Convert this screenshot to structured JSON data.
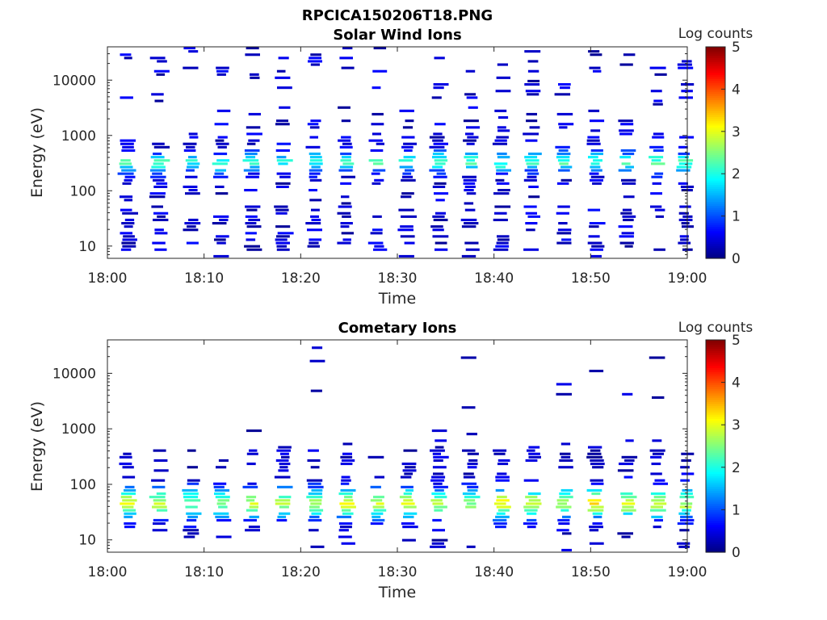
{
  "figure": {
    "title": "RPCICA150206T18.PNG"
  },
  "chart_data": [
    {
      "type": "heatmap",
      "title": "Solar Wind Ions",
      "xlabel": "Time",
      "ylabel": "Energy (eV)",
      "x_ticks": [
        "18:00",
        "18:10",
        "18:20",
        "18:30",
        "18:40",
        "18:50",
        "19:00"
      ],
      "x_range": [
        "18:00",
        "19:00"
      ],
      "y_scale": "log",
      "y_ticks": [
        "10",
        "100",
        "1000",
        "10000"
      ],
      "y_range": [
        6,
        40000
      ],
      "colorbar": {
        "label": "Log counts",
        "ticks": [
          "0",
          "1",
          "2",
          "3",
          "4",
          "5"
        ],
        "range": [
          0,
          5
        ],
        "colormap": "jet"
      },
      "peaks": [
        {
          "time_min": 2.1,
          "core_energy_eV": 320,
          "peak_log_counts": 1.8
        },
        {
          "time_min": 5.4,
          "core_energy_eV": 320,
          "peak_log_counts": 1.7
        },
        {
          "time_min": 8.7,
          "core_energy_eV": 320,
          "peak_log_counts": 1.6
        },
        {
          "time_min": 11.8,
          "core_energy_eV": 300,
          "peak_log_counts": 1.6
        },
        {
          "time_min": 15.0,
          "core_energy_eV": 330,
          "peak_log_counts": 1.8
        },
        {
          "time_min": 18.2,
          "core_energy_eV": 320,
          "peak_log_counts": 1.6
        },
        {
          "time_min": 21.5,
          "core_energy_eV": 340,
          "peak_log_counts": 1.8
        },
        {
          "time_min": 24.7,
          "core_energy_eV": 330,
          "peak_log_counts": 1.7
        },
        {
          "time_min": 28.0,
          "core_energy_eV": 320,
          "peak_log_counts": 1.7
        },
        {
          "time_min": 31.1,
          "core_energy_eV": 330,
          "peak_log_counts": 1.8
        },
        {
          "time_min": 34.3,
          "core_energy_eV": 330,
          "peak_log_counts": 1.9
        },
        {
          "time_min": 37.6,
          "core_energy_eV": 330,
          "peak_log_counts": 1.9
        },
        {
          "time_min": 40.8,
          "core_energy_eV": 320,
          "peak_log_counts": 1.8
        },
        {
          "time_min": 44.0,
          "core_energy_eV": 330,
          "peak_log_counts": 1.7
        },
        {
          "time_min": 47.3,
          "core_energy_eV": 330,
          "peak_log_counts": 1.8
        },
        {
          "time_min": 50.5,
          "core_energy_eV": 330,
          "peak_log_counts": 1.7
        },
        {
          "time_min": 53.8,
          "core_energy_eV": 320,
          "peak_log_counts": 1.7
        },
        {
          "time_min": 57.0,
          "core_energy_eV": 330,
          "peak_log_counts": 1.8
        },
        {
          "time_min": 59.8,
          "core_energy_eV": 320,
          "peak_log_counts": 1.7
        }
      ]
    },
    {
      "type": "heatmap",
      "title": "Cometary Ions",
      "xlabel": "Time",
      "ylabel": "Energy (eV)",
      "x_ticks": [
        "18:00",
        "18:10",
        "18:20",
        "18:30",
        "18:40",
        "18:50",
        "19:00"
      ],
      "x_range": [
        "18:00",
        "19:00"
      ],
      "y_scale": "log",
      "y_ticks": [
        "10",
        "100",
        "1000",
        "10000"
      ],
      "y_range": [
        6,
        40000
      ],
      "colorbar": {
        "label": "Log counts",
        "ticks": [
          "0",
          "1",
          "2",
          "3",
          "4",
          "5"
        ],
        "range": [
          0,
          5
        ],
        "colormap": "jet"
      },
      "peaks": [
        {
          "time_min": 2.1,
          "core_energy_eV": 45,
          "peak_log_counts": 2.6
        },
        {
          "time_min": 5.4,
          "core_energy_eV": 45,
          "peak_log_counts": 2.5
        },
        {
          "time_min": 8.7,
          "core_energy_eV": 45,
          "peak_log_counts": 2.2
        },
        {
          "time_min": 11.8,
          "core_energy_eV": 45,
          "peak_log_counts": 2.1
        },
        {
          "time_min": 15.0,
          "core_energy_eV": 45,
          "peak_log_counts": 2.5
        },
        {
          "time_min": 18.2,
          "core_energy_eV": 45,
          "peak_log_counts": 2.4
        },
        {
          "time_min": 21.5,
          "core_energy_eV": 45,
          "peak_log_counts": 2.2
        },
        {
          "time_min": 24.7,
          "core_energy_eV": 45,
          "peak_log_counts": 2.6
        },
        {
          "time_min": 28.0,
          "core_energy_eV": 45,
          "peak_log_counts": 2.5
        },
        {
          "time_min": 31.1,
          "core_energy_eV": 45,
          "peak_log_counts": 2.6
        },
        {
          "time_min": 34.3,
          "core_energy_eV": 45,
          "peak_log_counts": 2.3
        },
        {
          "time_min": 37.6,
          "core_energy_eV": 45,
          "peak_log_counts": 2.2
        },
        {
          "time_min": 40.8,
          "core_energy_eV": 45,
          "peak_log_counts": 2.7
        },
        {
          "time_min": 44.0,
          "core_energy_eV": 45,
          "peak_log_counts": 2.5
        },
        {
          "time_min": 47.3,
          "core_energy_eV": 45,
          "peak_log_counts": 2.5
        },
        {
          "time_min": 50.5,
          "core_energy_eV": 45,
          "peak_log_counts": 2.8
        },
        {
          "time_min": 53.8,
          "core_energy_eV": 45,
          "peak_log_counts": 2.6
        },
        {
          "time_min": 57.0,
          "core_energy_eV": 45,
          "peak_log_counts": 2.6
        },
        {
          "time_min": 59.8,
          "core_energy_eV": 45,
          "peak_log_counts": 2.4
        }
      ]
    }
  ]
}
